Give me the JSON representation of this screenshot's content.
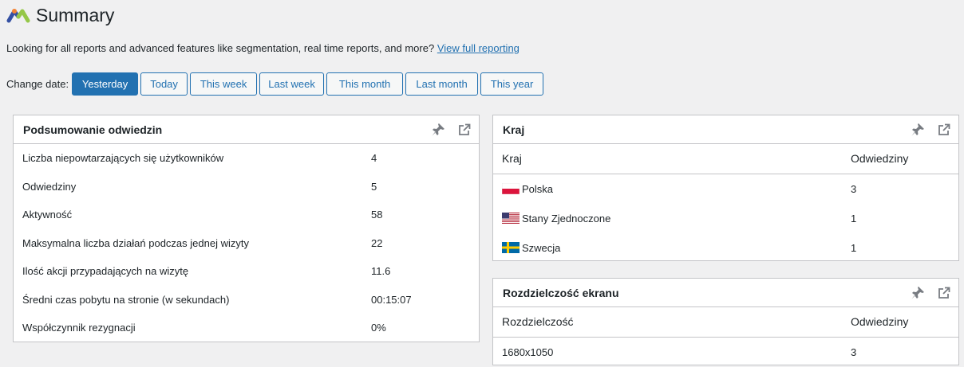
{
  "header": {
    "title": "Summary",
    "logo_icon": "matomo-logo-icon"
  },
  "intro": {
    "text": "Looking for all reports and advanced features like segmentation, real time reports, and more?",
    "link": "View full reporting"
  },
  "date_filter": {
    "label": "Change date:",
    "options": [
      "Yesterday",
      "Today",
      "This week",
      "Last week",
      "This month",
      "Last month",
      "This year"
    ],
    "selected": "Yesterday"
  },
  "visits_summary": {
    "title": "Podsumowanie odwiedzin",
    "rows": [
      {
        "label": "Liczba niepowtarzających się użytkowników",
        "value": "4"
      },
      {
        "label": "Odwiedziny",
        "value": "5"
      },
      {
        "label": "Aktywność",
        "value": "58"
      },
      {
        "label": "Maksymalna liczba działań podczas jednej wizyty",
        "value": "22"
      },
      {
        "label": "Ilość akcji przypadających na wizytę",
        "value": "11.6"
      },
      {
        "label": "Średni czas pobytu na stronie (w sekundach)",
        "value": "00:15:07"
      },
      {
        "label": "Współczynnik rezygnacji",
        "value": "0%"
      }
    ]
  },
  "country": {
    "title": "Kraj",
    "columns": [
      "Kraj",
      "Odwiedziny"
    ],
    "rows": [
      {
        "flag": "poland-flag-icon",
        "name": "Polska",
        "visits": "3"
      },
      {
        "flag": "usa-flag-icon",
        "name": "Stany Zjednoczone",
        "visits": "1"
      },
      {
        "flag": "sweden-flag-icon",
        "name": "Szwecja",
        "visits": "1"
      }
    ]
  },
  "resolution": {
    "title": "Rozdzielczość ekranu",
    "columns": [
      "Rozdzielczość",
      "Odwiedziny"
    ],
    "rows": [
      {
        "name": "1680x1050",
        "visits": "3"
      }
    ]
  },
  "card_icons": [
    "pin-icon",
    "external-link-icon"
  ],
  "colors": {
    "accent": "#2271b1",
    "background": "#f0f0f1",
    "border": "#c3c4c7"
  }
}
